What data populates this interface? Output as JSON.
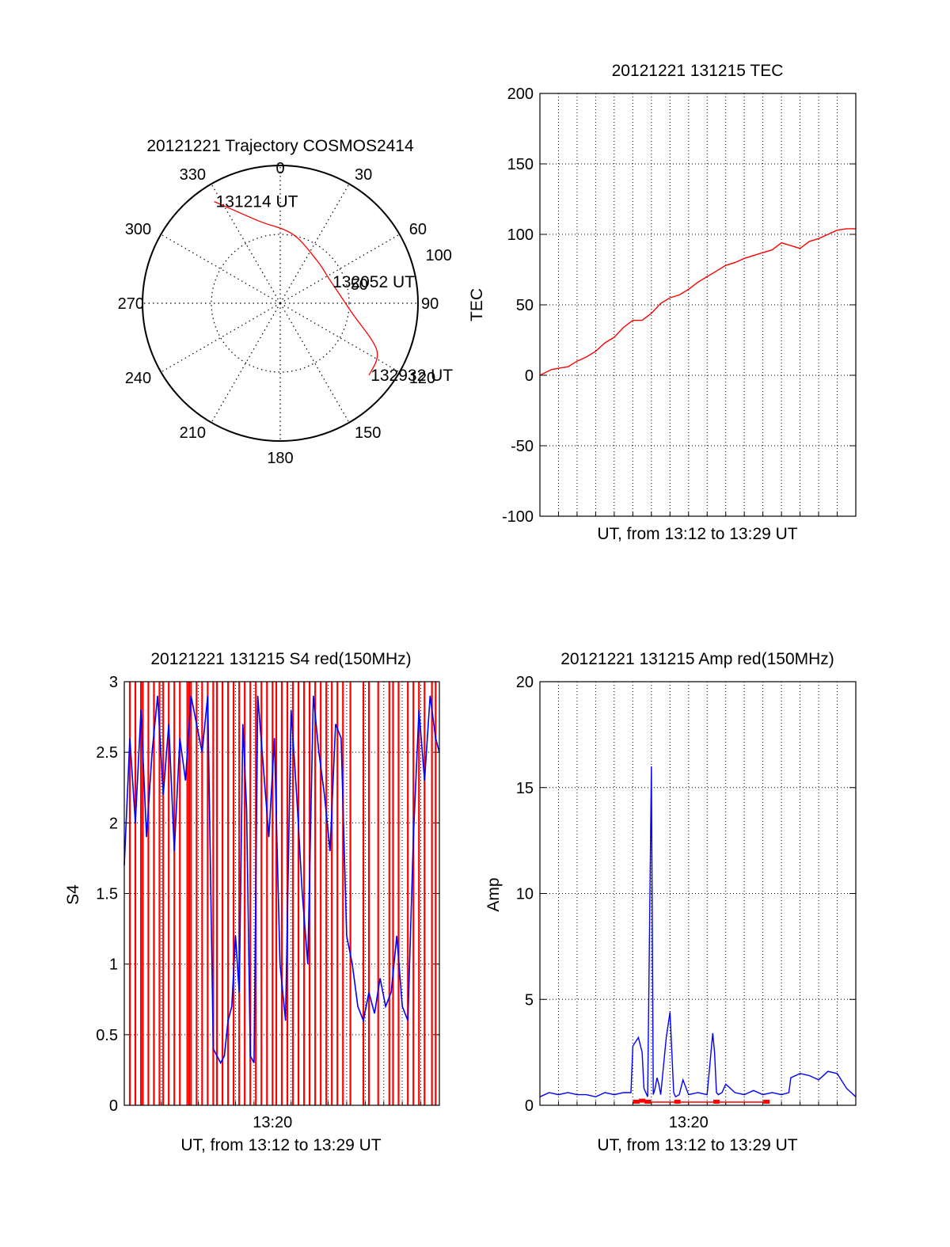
{
  "chart_data": [
    {
      "type": "polar",
      "title": "20121221 Trajectory COSMOS2414",
      "angle_labels": [
        "0",
        "30",
        "60",
        "90",
        "120",
        "150",
        "180",
        "210",
        "240",
        "270",
        "300",
        "330"
      ],
      "angle_values": [
        0,
        30,
        60,
        90,
        120,
        150,
        180,
        210,
        240,
        270,
        300,
        330
      ],
      "radial_labels": [
        "50",
        "100"
      ],
      "radial_values": [
        50,
        100
      ],
      "rlim": [
        0,
        100
      ],
      "grid": true,
      "series": [
        {
          "color": "#ff0000",
          "points": [
            {
              "az": 327,
              "r": 88
            },
            {
              "az": 345,
              "r": 62
            },
            {
              "az": 10,
              "r": 51
            },
            {
              "az": 40,
              "r": 41
            },
            {
              "az": 67,
              "r": 40
            },
            {
              "az": 97,
              "r": 52
            },
            {
              "az": 116,
              "r": 78
            },
            {
              "az": 129,
              "r": 83
            }
          ]
        }
      ],
      "annotations": [
        {
          "text": "131214 UT",
          "az": 327,
          "r": 88
        },
        {
          "text": "132052 UT",
          "az": 67,
          "r": 40
        },
        {
          "text": "132932 UT",
          "az": 129,
          "r": 83
        }
      ]
    },
    {
      "type": "line",
      "title": "20121221 131215 TEC",
      "xlabel": "UT, from 13:12 to 13:29 UT",
      "ylabel": "TEC",
      "xlim": [
        0,
        17
      ],
      "ylim": [
        -100,
        200
      ],
      "yticks": [
        -100,
        -50,
        0,
        50,
        100,
        150,
        200
      ],
      "xtick_labels": [],
      "grid": true,
      "series": [
        {
          "color": "#ff0000",
          "x": [
            0,
            0.6,
            1.0,
            1.5,
            2.0,
            2.5,
            3.0,
            3.5,
            4.0,
            4.5,
            5.0,
            5.5,
            6.0,
            6.5,
            7.0,
            7.5,
            8.0,
            8.5,
            9.0,
            9.5,
            10.0,
            10.5,
            11.0,
            11.5,
            12.0,
            12.5,
            13.0,
            13.5,
            14.0,
            14.5,
            15.0,
            15.5,
            16.0,
            16.5,
            17.0
          ],
          "y": [
            0,
            4,
            5,
            6,
            10,
            13,
            17,
            23,
            27,
            34,
            39,
            39,
            44,
            51,
            55,
            57,
            61,
            66,
            70,
            74,
            78,
            80,
            83,
            85,
            87,
            89,
            94,
            92,
            90,
            95,
            97,
            100,
            103,
            104,
            104
          ]
        }
      ]
    },
    {
      "type": "line",
      "title": "20121221 131215 S4 red(150MHz)",
      "xlabel": "UT, from 13:12 to 13:29 UT",
      "ylabel": "S4",
      "xlim": [
        0,
        17
      ],
      "ylim": [
        0,
        3
      ],
      "yticks": [
        0,
        0.5,
        1,
        1.5,
        2,
        2.5,
        3
      ],
      "yticks_labels": [
        "0",
        "0.5",
        "1",
        "1.5",
        "2",
        "2.5",
        "3"
      ],
      "xtick_labels": [
        "13:20"
      ],
      "xtick_values": [
        8
      ],
      "grid": true,
      "series": [
        {
          "color": "#ff0000",
          "type": "vlines",
          "x": [
            0.3,
            0.6,
            0.9,
            1.0,
            1.3,
            1.6,
            1.9,
            2.1,
            2.4,
            2.7,
            3.0,
            3.4,
            3.5,
            3.6,
            3.9,
            4.2,
            4.5,
            4.8,
            5.0,
            5.3,
            5.6,
            5.9,
            6.2,
            6.5,
            6.8,
            7.1,
            7.4,
            7.7,
            8.0,
            8.2,
            8.5,
            8.8,
            9.1,
            9.4,
            9.7,
            10.0,
            10.3,
            10.6,
            10.9,
            11.2,
            11.5,
            11.8,
            12.2,
            12.9,
            13.2,
            13.7,
            14.3,
            14.5,
            14.8,
            15.3,
            15.6,
            15.9,
            16.2,
            16.6,
            16.8
          ],
          "y": [
            3,
            3,
            3,
            3,
            3,
            3,
            3,
            3,
            3,
            3,
            3,
            3,
            3,
            3,
            3,
            3,
            3,
            3,
            3,
            3,
            3,
            3,
            3,
            3,
            3,
            3,
            3,
            3,
            3,
            3,
            3,
            3,
            3,
            3,
            3,
            3,
            3,
            3,
            3,
            3,
            3,
            3,
            3,
            3,
            3,
            3,
            3,
            3,
            3,
            3,
            3,
            3,
            3,
            3,
            3
          ]
        },
        {
          "color": "#0000ff",
          "x": [
            0,
            0.3,
            0.6,
            0.9,
            1.2,
            1.5,
            1.8,
            2.1,
            2.4,
            2.7,
            3.0,
            3.3,
            3.6,
            3.9,
            4.2,
            4.5,
            4.8,
            5.0,
            5.2,
            5.4,
            5.6,
            5.8,
            6.0,
            6.2,
            6.4,
            6.6,
            6.8,
            7.0,
            7.2,
            7.5,
            7.8,
            8.1,
            8.4,
            8.7,
            9.0,
            9.3,
            9.6,
            9.9,
            10.2,
            10.5,
            10.8,
            11.1,
            11.4,
            11.7,
            12.0,
            12.3,
            12.6,
            12.9,
            13.2,
            13.5,
            13.8,
            14.1,
            14.4,
            14.7,
            15.0,
            15.3,
            15.6,
            15.9,
            16.2,
            16.5,
            16.8,
            17.0
          ],
          "y": [
            1.7,
            2.6,
            2.0,
            2.8,
            1.9,
            2.5,
            2.9,
            2.2,
            2.7,
            1.8,
            2.6,
            2.3,
            2.9,
            2.7,
            2.5,
            2.9,
            0.4,
            0.35,
            0.3,
            0.35,
            0.6,
            0.7,
            1.2,
            0.8,
            2.7,
            2.1,
            0.35,
            0.3,
            2.9,
            2.4,
            1.9,
            2.6,
            1.0,
            0.6,
            2.8,
            2.2,
            1.5,
            1.0,
            2.9,
            2.5,
            2.2,
            1.8,
            2.7,
            2.6,
            1.2,
            1.0,
            0.7,
            0.6,
            0.8,
            0.65,
            0.9,
            0.7,
            0.8,
            1.2,
            0.7,
            0.6,
            1.9,
            2.8,
            2.3,
            2.9,
            2.6,
            2.5
          ]
        }
      ]
    },
    {
      "type": "line",
      "title": "20121221 131215 Amp red(150MHz)",
      "xlabel": "UT, from 13:12 to 13:29 UT",
      "ylabel": "Amp",
      "xlim": [
        0,
        17
      ],
      "ylim": [
        0,
        20
      ],
      "yticks": [
        0,
        5,
        10,
        15,
        20
      ],
      "xtick_labels": [
        "13:20"
      ],
      "xtick_values": [
        8
      ],
      "grid": true,
      "series": [
        {
          "color": "#0000ff",
          "x": [
            0,
            0.5,
            1.0,
            1.5,
            2.0,
            2.5,
            3.0,
            3.5,
            4.0,
            4.5,
            4.9,
            5.0,
            5.3,
            5.5,
            5.6,
            5.8,
            6.0,
            6.1,
            6.2,
            6.3,
            6.4,
            6.5,
            6.8,
            7.0,
            7.2,
            7.3,
            7.5,
            7.7,
            8.0,
            8.5,
            9.0,
            9.3,
            9.4,
            9.5,
            9.6,
            9.8,
            10.0,
            10.5,
            11.0,
            11.5,
            12.0,
            12.5,
            13.0,
            13.4,
            13.5,
            14.0,
            14.5,
            15.0,
            15.5,
            16.0,
            16.5,
            17.0
          ],
          "y": [
            0.4,
            0.6,
            0.5,
            0.6,
            0.5,
            0.5,
            0.4,
            0.6,
            0.5,
            0.6,
            0.6,
            2.8,
            3.2,
            2.5,
            0.8,
            0.4,
            16.0,
            0.5,
            0.8,
            1.3,
            1.0,
            0.5,
            3.2,
            4.4,
            0.6,
            0.4,
            0.5,
            1.2,
            0.5,
            0.6,
            0.5,
            3.4,
            2.5,
            0.6,
            0.5,
            0.6,
            1.0,
            0.6,
            0.5,
            0.7,
            0.5,
            0.6,
            0.5,
            0.6,
            1.3,
            1.5,
            1.4,
            1.2,
            1.6,
            1.5,
            0.8,
            0.4
          ]
        },
        {
          "color": "#ff0000",
          "x": [
            5.2,
            5.5,
            5.8,
            7.4,
            9.5,
            12.2
          ],
          "y": [
            0.15,
            0.2,
            0.15,
            0.15,
            0.15,
            0.15
          ]
        }
      ]
    }
  ]
}
